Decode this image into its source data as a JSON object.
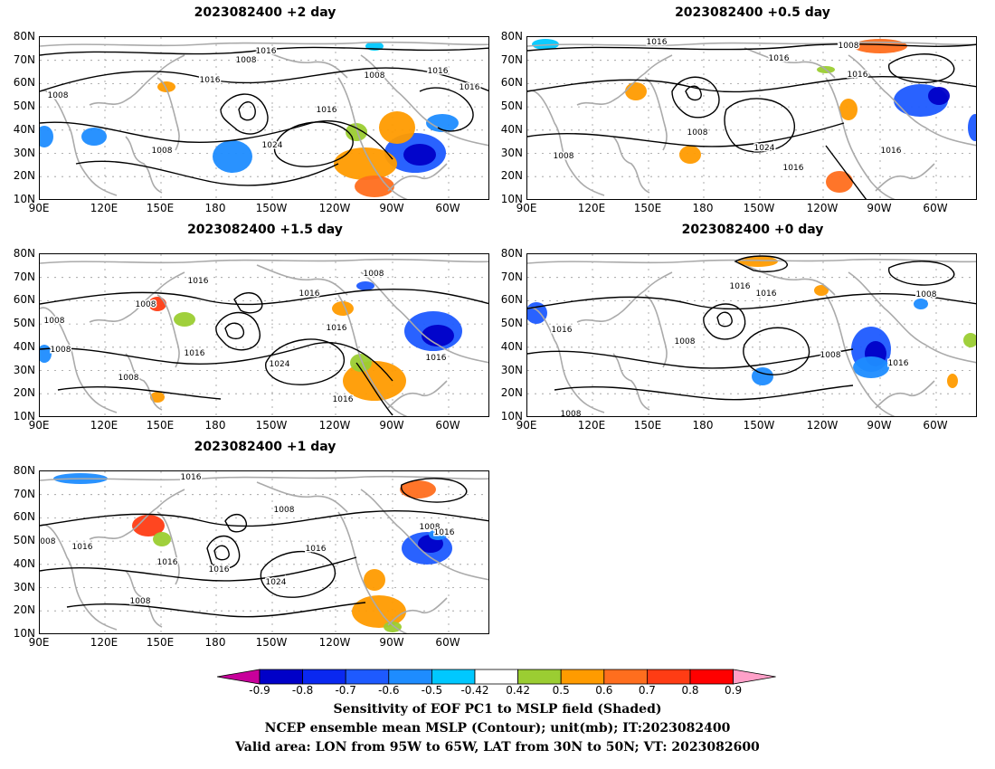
{
  "panels": [
    {
      "id": "p1",
      "title": "2023082400 +2 day"
    },
    {
      "id": "p2",
      "title": "2023082400 +0.5 day"
    },
    {
      "id": "p3",
      "title": "2023082400 +1.5 day"
    },
    {
      "id": "p4",
      "title": "2023082400 +0 day"
    },
    {
      "id": "p5",
      "title": "2023082400 +1 day"
    }
  ],
  "axes": {
    "lat_labels": [
      "80N",
      "70N",
      "60N",
      "50N",
      "40N",
      "30N",
      "20N",
      "10N"
    ],
    "lon_labels": [
      "90E",
      "120E",
      "150E",
      "180",
      "150W",
      "120W",
      "90W",
      "60W"
    ]
  },
  "contour_labels": {
    "p1": [
      "1016",
      "1008",
      "1016",
      "1008",
      "1016",
      "1016",
      "1008",
      "1016",
      "1024",
      "1008"
    ],
    "p2": [
      "1016",
      "1008",
      "1016",
      "1016",
      "1008",
      "1008",
      "1024",
      "1016",
      "1016"
    ],
    "p3": [
      "1008",
      "1016",
      "1016",
      "1016",
      "1008",
      "1016",
      "1024",
      "1016",
      "1016",
      "1008",
      "1008",
      "1008"
    ],
    "p4": [
      "1016",
      "1016",
      "1008",
      "1016",
      "1008",
      "1008",
      "1016",
      "1008"
    ],
    "p5": [
      "1016",
      "1008",
      "1016",
      "1016",
      "1008",
      "1024",
      "1016",
      "1008",
      "1016",
      "1016",
      "1008"
    ]
  },
  "colorbar": {
    "labels": [
      "-0.9",
      "-0.8",
      "-0.7",
      "-0.6",
      "-0.5",
      "-0.42",
      "0.42",
      "0.5",
      "0.6",
      "0.7",
      "0.8",
      "0.9"
    ],
    "colors": [
      "#0000c8",
      "#0a28f0",
      "#1e5aff",
      "#1e8cff",
      "#00c8ff",
      "#ffffff",
      "#9bcd32",
      "#ff9b00",
      "#ff6e1e",
      "#ff3c14",
      "#ff0000"
    ],
    "low_end_color": "#c8009b",
    "high_end_color": "#ffa0c8"
  },
  "caption": {
    "line1": "Sensitivity of EOF PC1 to MSLP field (Shaded)",
    "line2": "NCEP ensemble mean MSLP (Contour); unit(mb); IT:2023082400",
    "line3": "Valid area: LON from 95W to 65W, LAT from 30N to 50N; VT: 2023082600"
  }
}
